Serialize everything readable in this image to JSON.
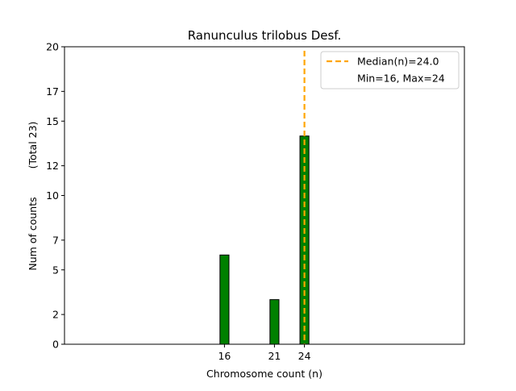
{
  "chart_data": {
    "type": "bar",
    "title": "Ranunculus trilobus Desf.",
    "xlabel": "Chromosome count (n)",
    "ylabel": "Num of counts",
    "ylabel_total": "(Total 23)",
    "x": [
      16,
      21,
      24
    ],
    "values": [
      6,
      3,
      14
    ],
    "xlim": [
      0,
      40
    ],
    "ylim": [
      0,
      20
    ],
    "xticks": [
      "16",
      "21",
      "24"
    ],
    "yticks": [
      "0",
      "2",
      "5",
      "7",
      "10",
      "12",
      "15",
      "17",
      "20"
    ],
    "ytick_values": [
      0,
      2,
      5,
      7,
      10,
      12,
      15,
      17,
      20
    ],
    "bar_color": "#008000",
    "bar_edge_color": "#000000",
    "median": 24.0,
    "median_color": "#FFA500",
    "legend": {
      "position": "top-right",
      "entries": [
        "Median(n)=24.0",
        "Min=16, Max=24"
      ]
    },
    "grid": false
  }
}
